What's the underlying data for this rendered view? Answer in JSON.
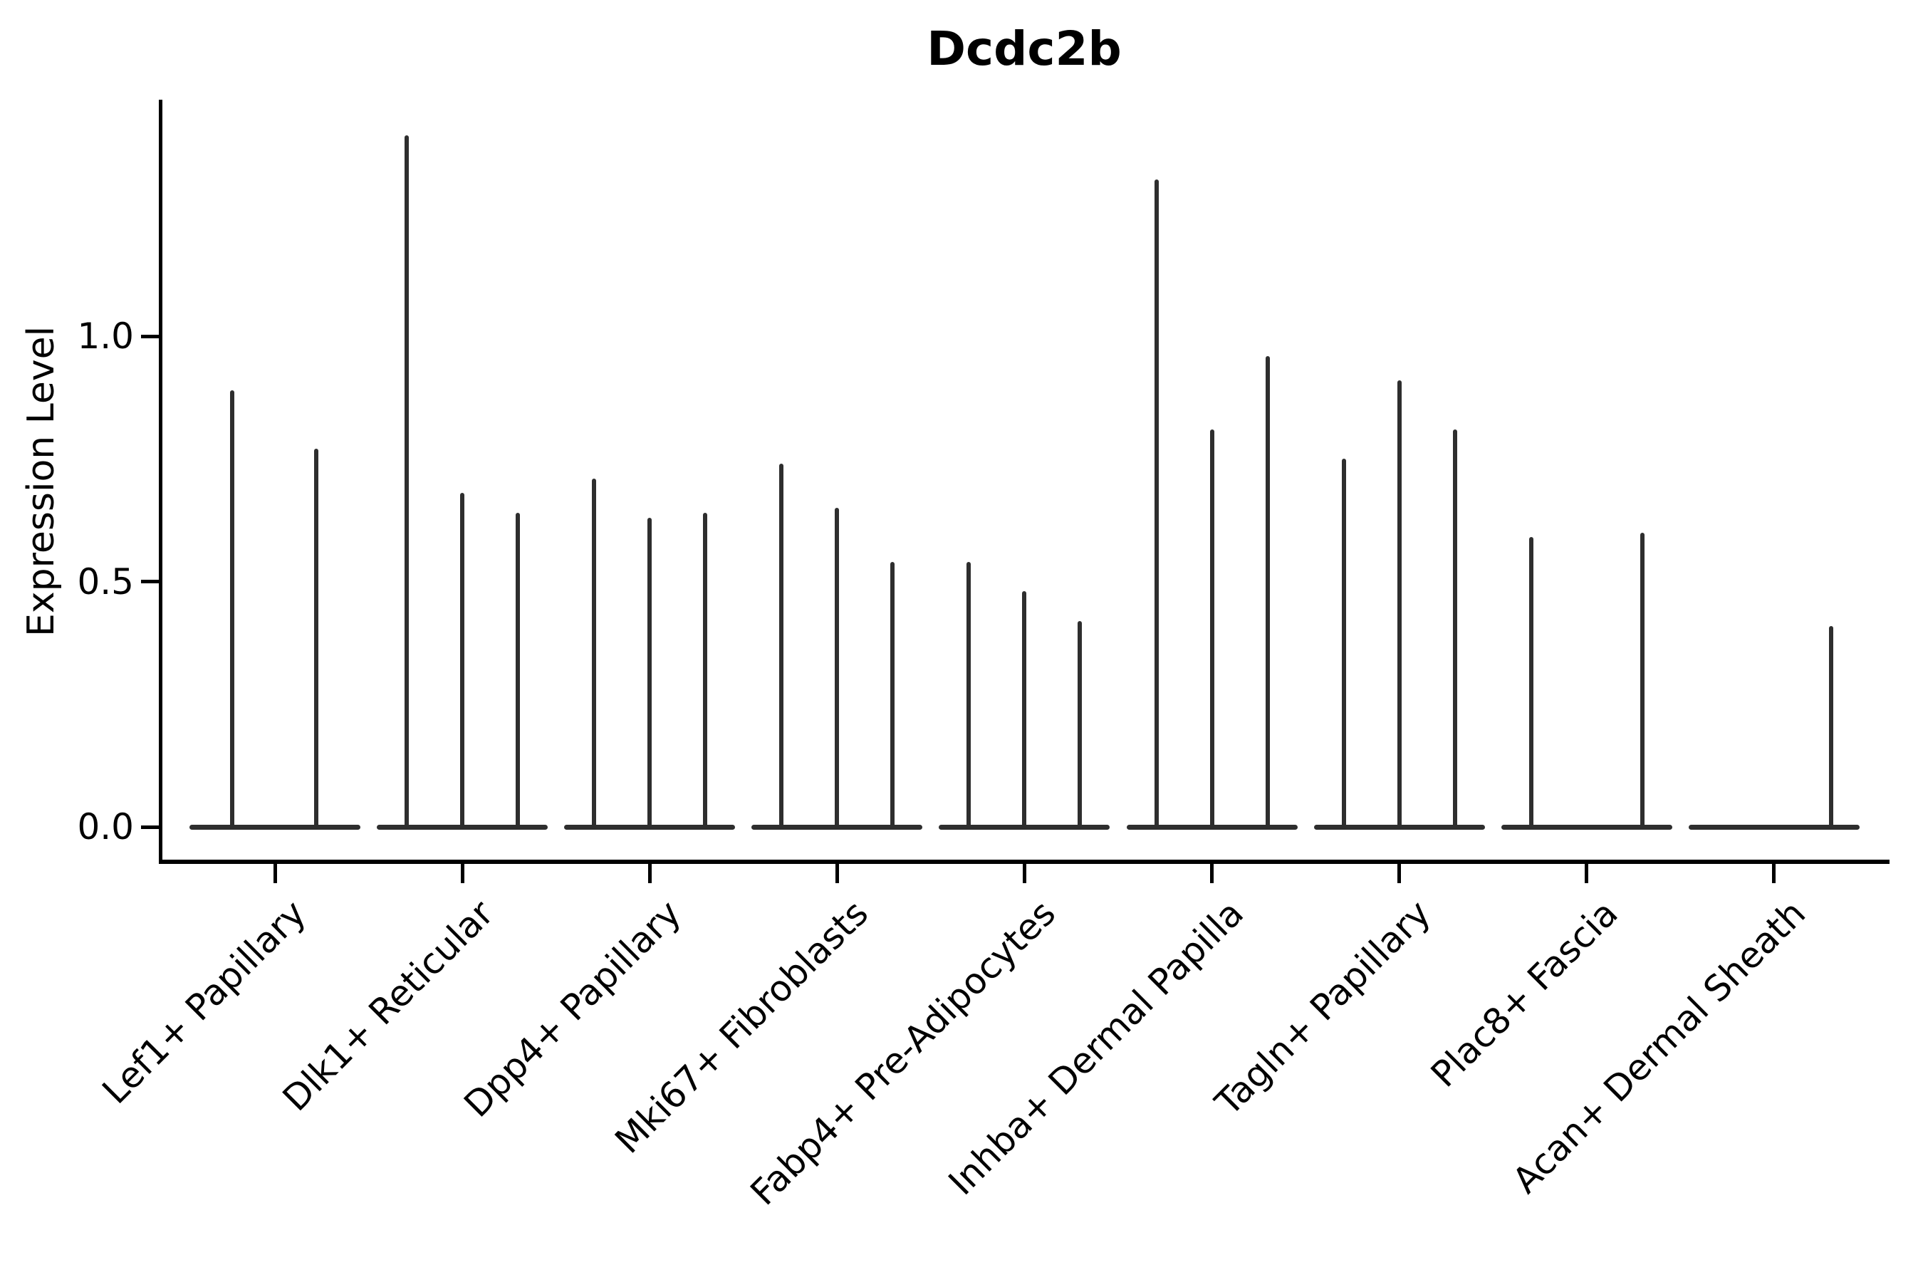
{
  "title": "Dcdc2b",
  "colors": {
    "ink": "#000000",
    "violin": "#2e2e2e",
    "background": "#ffffff"
  },
  "chart_data": {
    "type": "violin",
    "title": "Dcdc2b",
    "xlabel": "",
    "ylabel": "Expression Level",
    "ylim": [
      -0.07,
      1.49
    ],
    "yticks": [
      0.0,
      0.5,
      1.0
    ],
    "ytick_labels": [
      "0.0",
      "0.5",
      "1.0"
    ],
    "grid": false,
    "legend_position": "none",
    "categories": [
      "Lef1+ Papillary",
      "Dlk1+ Reticular",
      "Dpp4+ Papillary",
      "Mki67+ Fibroblasts",
      "Fabp4+ Pre-Adipocytes",
      "Inhba+ Dermal Papilla",
      "Tagln+ Papillary",
      "Plac8+ Fascia",
      "Acan+ Dermal Sheath"
    ],
    "series": [
      {
        "category": "Lef1+ Papillary",
        "spikes": [
          {
            "offset": -60,
            "peak": 0.89
          },
          {
            "offset": 58,
            "peak": 0.77
          }
        ]
      },
      {
        "category": "Dlk1+ Reticular",
        "spikes": [
          {
            "offset": -78,
            "peak": 1.41
          },
          {
            "offset": 0,
            "peak": 0.68
          },
          {
            "offset": 78,
            "peak": 0.64
          }
        ]
      },
      {
        "category": "Dpp4+ Papillary",
        "spikes": [
          {
            "offset": -78,
            "peak": 0.71
          },
          {
            "offset": 0,
            "peak": 0.63
          },
          {
            "offset": 78,
            "peak": 0.64
          }
        ]
      },
      {
        "category": "Mki67+ Fibroblasts",
        "spikes": [
          {
            "offset": -78,
            "peak": 0.74
          },
          {
            "offset": 0,
            "peak": 0.65
          },
          {
            "offset": 78,
            "peak": 0.54
          }
        ]
      },
      {
        "category": "Fabp4+ Pre-Adipocytes",
        "spikes": [
          {
            "offset": -78,
            "peak": 0.54
          },
          {
            "offset": 0,
            "peak": 0.48
          },
          {
            "offset": 78,
            "peak": 0.42
          }
        ]
      },
      {
        "category": "Inhba+ Dermal Papilla",
        "spikes": [
          {
            "offset": -78,
            "peak": 1.32
          },
          {
            "offset": 0,
            "peak": 0.81
          },
          {
            "offset": 78,
            "peak": 0.96
          }
        ]
      },
      {
        "category": "Tagln+ Papillary",
        "spikes": [
          {
            "offset": -78,
            "peak": 0.75
          },
          {
            "offset": 0,
            "peak": 0.91
          },
          {
            "offset": 78,
            "peak": 0.81
          }
        ]
      },
      {
        "category": "Plac8+ Fascia",
        "spikes": [
          {
            "offset": -78,
            "peak": 0.59
          },
          {
            "offset": 78,
            "peak": 0.6
          }
        ]
      },
      {
        "category": "Acan+ Dermal Sheath",
        "spikes": [
          {
            "offset": 80,
            "peak": 0.41
          }
        ]
      }
    ]
  }
}
